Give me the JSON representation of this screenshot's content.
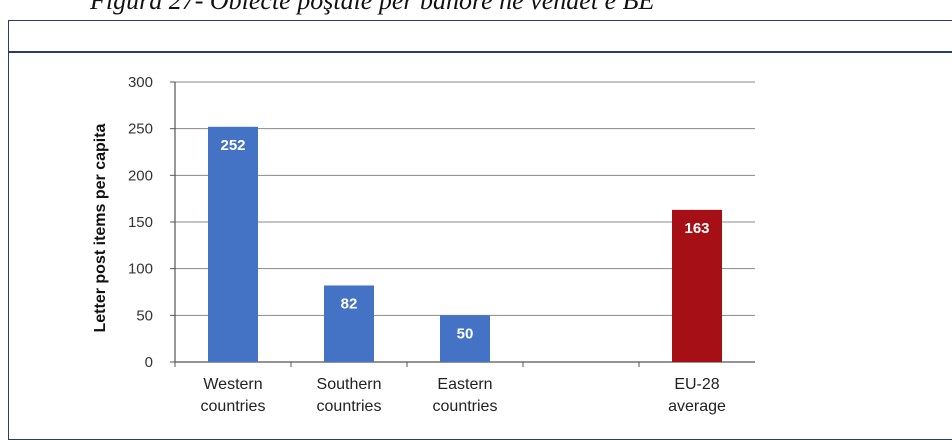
{
  "caption": "Figura 27- Obiecte poştale per banore në vendet e BE",
  "chart_data": {
    "type": "bar",
    "ylabel": "Letter post items per capita",
    "ylim": [
      0,
      300
    ],
    "yticks": [
      0,
      50,
      100,
      150,
      200,
      250,
      300
    ],
    "grid": true,
    "categories": [
      {
        "line1": "Western",
        "line2": "countries"
      },
      {
        "line1": "Southern",
        "line2": "countries"
      },
      {
        "line1": "Eastern",
        "line2": "countries"
      },
      {
        "line1": "",
        "line2": ""
      },
      {
        "line1": "EU-28",
        "line2": "average"
      }
    ],
    "values": [
      252,
      82,
      50,
      null,
      163
    ],
    "value_labels": [
      "252",
      "82",
      "50",
      "",
      "163"
    ],
    "colors": [
      "#4472c4",
      "#4472c4",
      "#4472c4",
      "#4472c4",
      "#a50f15"
    ]
  }
}
